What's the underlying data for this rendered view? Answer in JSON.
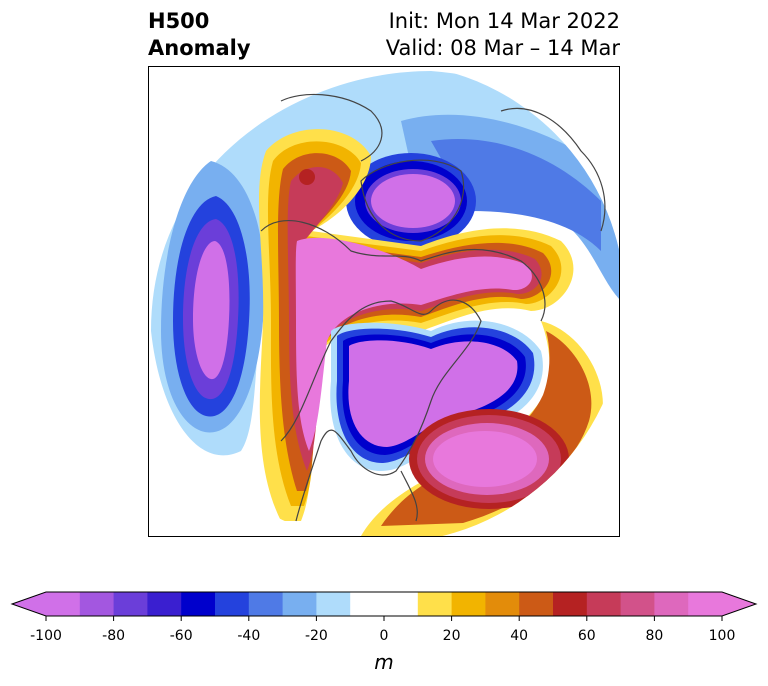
{
  "title": {
    "left_line1": "H500",
    "left_line2": "Anomaly",
    "right_line1": "Init: Mon 14 Mar 2022",
    "right_line2": "Valid: 08 Mar – 14 Mar"
  },
  "colorbar": {
    "unit": "m",
    "ticks": [
      "-100",
      "-80",
      "-60",
      "-40",
      "-20",
      "0",
      "20",
      "40",
      "60",
      "80",
      "100"
    ],
    "range": [
      -100,
      100
    ],
    "step": 10,
    "colors": [
      "#d070e8",
      "#a357e0",
      "#6b3ed9",
      "#3a1fd0",
      "#0000cc",
      "#2442dd",
      "#4f7ae6",
      "#78aff0",
      "#afdcfb",
      "#ffffff",
      "#ffffff",
      "#ffe04a",
      "#f2b400",
      "#e38c0a",
      "#cc5a16",
      "#b52222",
      "#c63b59",
      "#d2528a",
      "#de68bd",
      "#e878dc"
    ],
    "extend": "both"
  },
  "map": {
    "projection": "polar stereographic",
    "field": "500 hPa geopotential height anomaly"
  }
}
